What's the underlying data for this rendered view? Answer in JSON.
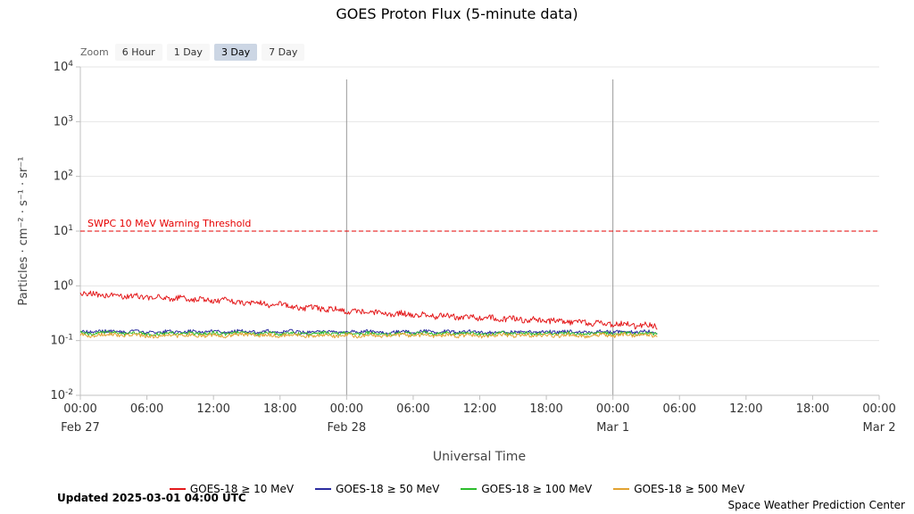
{
  "title": "GOES Proton Flux (5-minute data)",
  "zoom": {
    "label": "Zoom",
    "buttons": [
      {
        "label": "6 Hour",
        "selected": false
      },
      {
        "label": "1 Day",
        "selected": false
      },
      {
        "label": "3 Day",
        "selected": true
      },
      {
        "label": "7 Day",
        "selected": false
      }
    ]
  },
  "footer": {
    "updated": "Updated 2025-03-01 04:00 UTC",
    "credit": "Space Weather Prediction Center"
  },
  "chart_data": {
    "type": "line",
    "title": "GOES Proton Flux (5-minute data)",
    "xlabel": "Universal Time",
    "ylabel": "Particles · cm⁻² · s⁻¹ · sr⁻¹",
    "y_scale": "log",
    "ylim": [
      0.01,
      10000
    ],
    "y_ticks_exponents": [
      -2,
      -1,
      0,
      1,
      2,
      3,
      4
    ],
    "x_range_hours": [
      0,
      72
    ],
    "x_tick_interval_hours": 6,
    "x_day_labels": [
      {
        "hour": 0,
        "label": "Feb 27"
      },
      {
        "hour": 24,
        "label": "Feb 28"
      },
      {
        "hour": 48,
        "label": "Mar 1"
      },
      {
        "hour": 72,
        "label": "Mar 2"
      }
    ],
    "day_boundary_hours": [
      24,
      48
    ],
    "grid": true,
    "legend_position": "bottom",
    "threshold": {
      "label": "SWPC 10 MeV Warning Threshold",
      "value": 10,
      "color": "#e60000"
    },
    "style": {
      "grid": "#e6e6e6",
      "axis": "#c0c0c0",
      "day_line": "#999999",
      "tick_text": "#333333",
      "axis_title": "#444444"
    },
    "series": [
      {
        "name": "GOES-18 ≥ 10 MeV",
        "color": "#e41a1c",
        "x_start_hour": 0,
        "x_step_hours": 1,
        "noise_log10": 0.05,
        "values": [
          0.7,
          0.73,
          0.66,
          0.69,
          0.62,
          0.66,
          0.6,
          0.63,
          0.57,
          0.61,
          0.55,
          0.58,
          0.52,
          0.56,
          0.5,
          0.47,
          0.51,
          0.44,
          0.47,
          0.42,
          0.38,
          0.42,
          0.36,
          0.39,
          0.33,
          0.36,
          0.31,
          0.34,
          0.3,
          0.32,
          0.28,
          0.31,
          0.27,
          0.3,
          0.26,
          0.28,
          0.25,
          0.27,
          0.24,
          0.26,
          0.23,
          0.25,
          0.22,
          0.24,
          0.21,
          0.23,
          0.2,
          0.22,
          0.19,
          0.21,
          0.18,
          0.2,
          0.18
        ]
      },
      {
        "name": "GOES-18 ≥ 50 MeV",
        "color": "#2b2da0",
        "x_start_hour": 0,
        "x_step_hours": 1,
        "noise_log10": 0.03,
        "values": [
          0.15,
          0.14,
          0.15,
          0.15,
          0.14,
          0.15,
          0.14,
          0.14,
          0.15,
          0.14,
          0.15,
          0.14,
          0.15,
          0.14,
          0.15,
          0.15,
          0.14,
          0.15,
          0.14,
          0.15,
          0.14,
          0.14,
          0.15,
          0.14,
          0.15,
          0.14,
          0.15,
          0.14,
          0.14,
          0.15,
          0.14,
          0.15,
          0.14,
          0.15,
          0.14,
          0.15,
          0.14,
          0.14,
          0.15,
          0.14,
          0.15,
          0.14,
          0.15,
          0.14,
          0.15,
          0.14,
          0.14,
          0.15,
          0.14,
          0.15,
          0.14,
          0.15,
          0.14
        ]
      },
      {
        "name": "GOES-18 ≥ 100 MeV",
        "color": "#2dbd2d",
        "x_start_hour": 0,
        "x_step_hours": 1,
        "noise_log10": 0.03,
        "values": [
          0.14,
          0.13,
          0.14,
          0.14,
          0.13,
          0.14,
          0.13,
          0.13,
          0.14,
          0.13,
          0.14,
          0.13,
          0.14,
          0.13,
          0.14,
          0.14,
          0.13,
          0.14,
          0.13,
          0.14,
          0.13,
          0.13,
          0.14,
          0.13,
          0.14,
          0.13,
          0.14,
          0.13,
          0.13,
          0.14,
          0.13,
          0.14,
          0.13,
          0.14,
          0.13,
          0.14,
          0.13,
          0.13,
          0.14,
          0.13,
          0.14,
          0.13,
          0.14,
          0.13,
          0.14,
          0.13,
          0.13,
          0.14,
          0.13,
          0.14,
          0.13,
          0.14,
          0.13
        ]
      },
      {
        "name": "GOES-18 ≥ 500 MeV",
        "color": "#e2a231",
        "x_start_hour": 0,
        "x_step_hours": 1,
        "noise_log10": 0.035,
        "values": [
          0.13,
          0.12,
          0.13,
          0.13,
          0.12,
          0.13,
          0.12,
          0.12,
          0.13,
          0.12,
          0.13,
          0.12,
          0.13,
          0.12,
          0.13,
          0.13,
          0.12,
          0.13,
          0.12,
          0.13,
          0.12,
          0.12,
          0.13,
          0.12,
          0.13,
          0.12,
          0.13,
          0.12,
          0.12,
          0.13,
          0.12,
          0.13,
          0.12,
          0.13,
          0.12,
          0.13,
          0.12,
          0.12,
          0.13,
          0.12,
          0.13,
          0.12,
          0.13,
          0.12,
          0.13,
          0.12,
          0.12,
          0.13,
          0.12,
          0.13,
          0.12,
          0.13,
          0.12
        ]
      }
    ]
  }
}
